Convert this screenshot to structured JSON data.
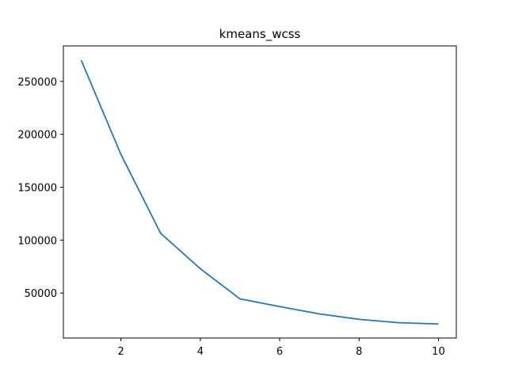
{
  "chart_data": {
    "type": "line",
    "title": "kmeans_wcss",
    "xlabel": "",
    "ylabel": "",
    "x": [
      1,
      2,
      3,
      4,
      5,
      6,
      7,
      8,
      9,
      10
    ],
    "series": [
      {
        "values": [
          269900,
          181000,
          106500,
          73000,
          44500,
          37200,
          30300,
          25200,
          22000,
          20800
        ],
        "color": "#1f77b4"
      }
    ],
    "xlim": [
      0.55,
      10.45
    ],
    "ylim": [
      7500,
      283500
    ],
    "xticks": [
      2,
      4,
      6,
      8,
      10
    ],
    "xtick_labels": [
      "2",
      "4",
      "6",
      "8",
      "10"
    ],
    "yticks": [
      50000,
      100000,
      150000,
      200000,
      250000
    ],
    "ytick_labels": [
      "50000",
      "100000",
      "150000",
      "200000",
      "250000"
    ],
    "grid": false,
    "legend": false
  }
}
